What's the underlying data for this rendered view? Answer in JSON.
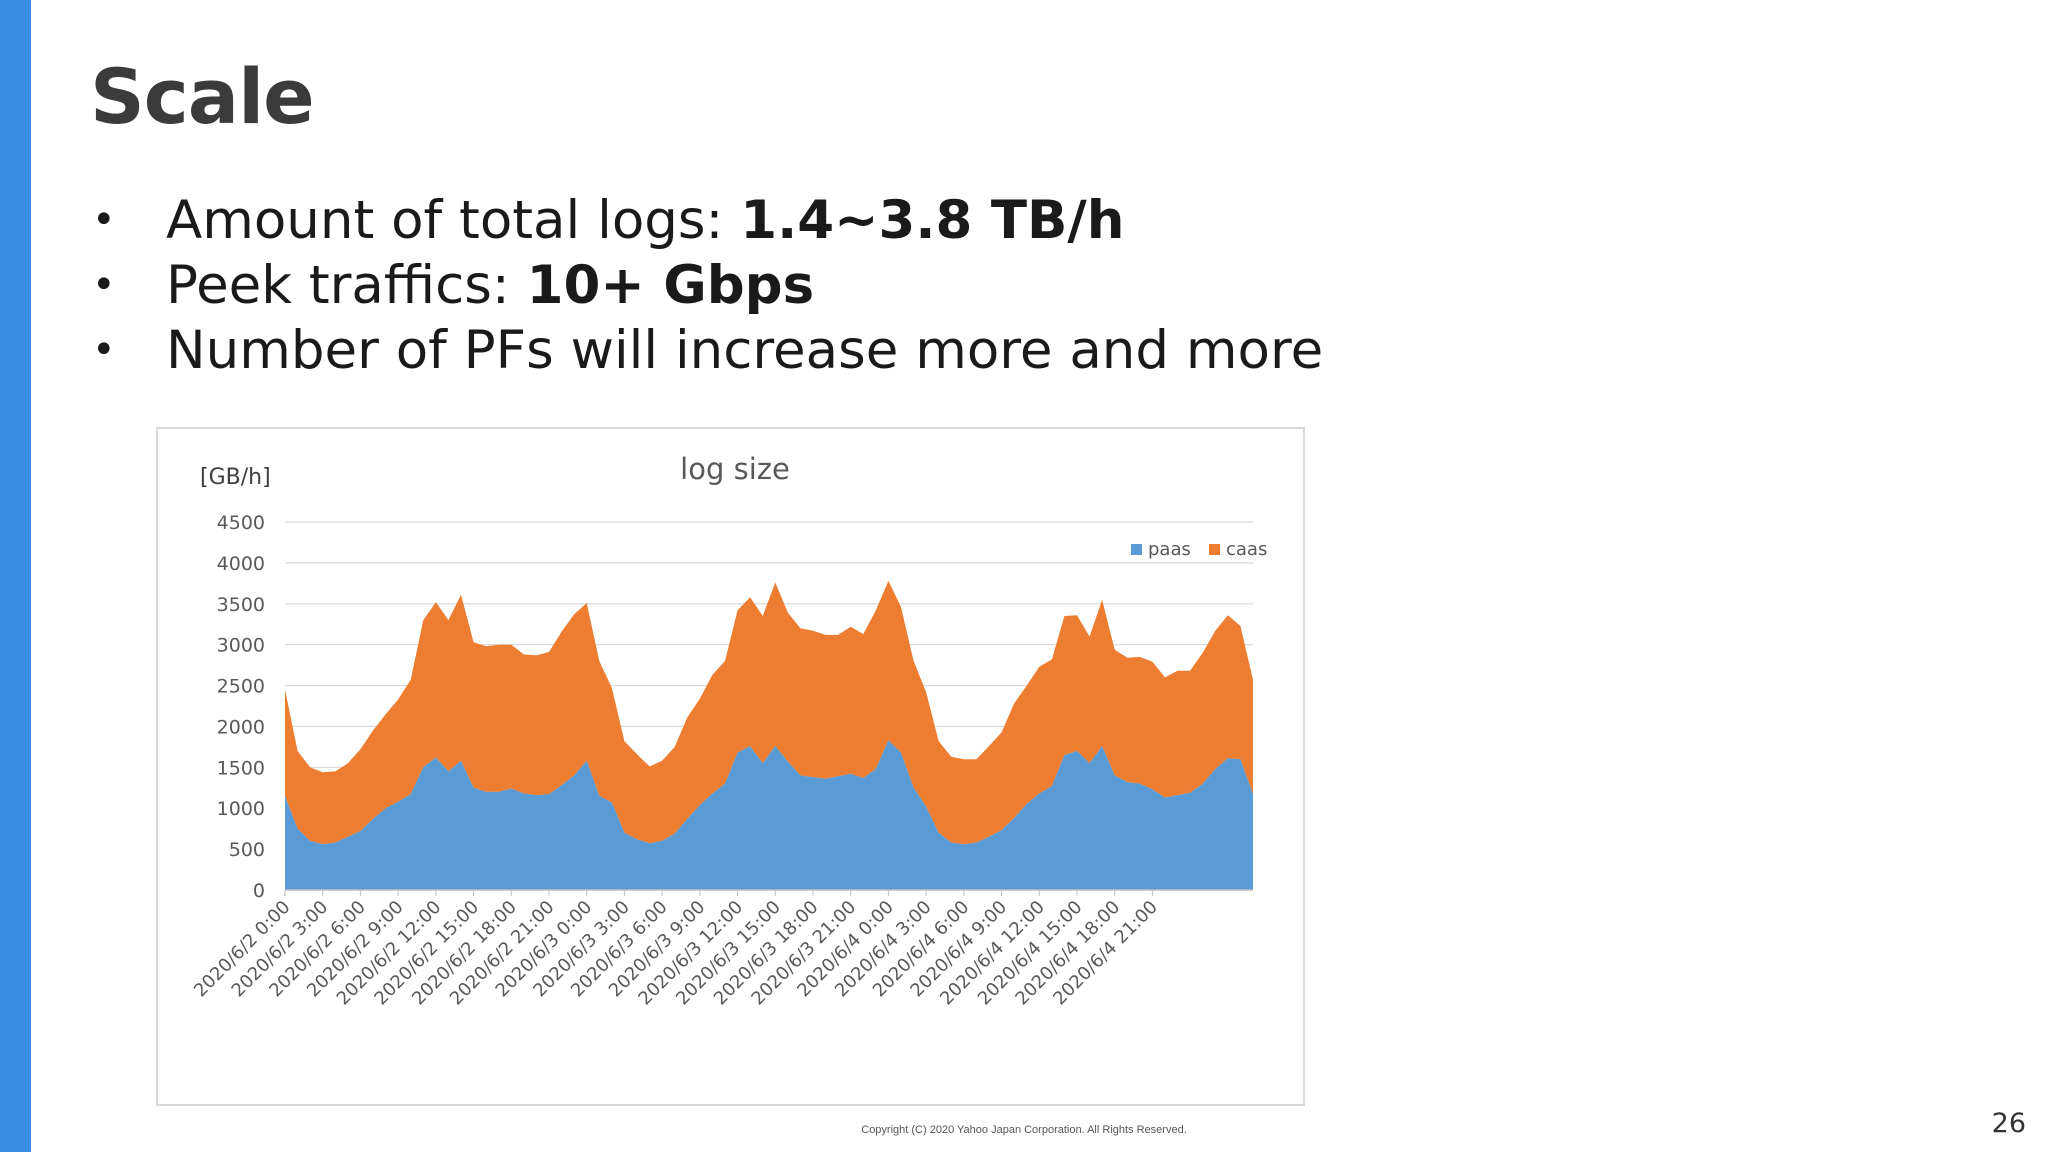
{
  "slide": {
    "title": "Scale",
    "bullet_symbol": "•",
    "bullets": [
      {
        "text": "Amount of total logs: ",
        "bold": "1.4~3.8 TB/h"
      },
      {
        "text": "Peek traffics: ",
        "bold": "10+ Gbps"
      },
      {
        "text": "Number of PFs will increase more and more",
        "bold": ""
      }
    ],
    "copyright": "Copyright (C) 2020 Yahoo Japan Corporation. All Rights Reserved.",
    "page_number": "26"
  },
  "colors": {
    "accent": "#3a8ee6",
    "title": "#3b3b3b",
    "text": "#1a1a1a",
    "paas": "#5b9bd5",
    "caas": "#ed7d31",
    "grid": "#d9d9d9",
    "axis_text": "#595959"
  },
  "chart_data": {
    "type": "area",
    "stacked": true,
    "title": "log size",
    "ylabel": "[GB/h]",
    "xlabel": "",
    "ylim": [
      0,
      4500
    ],
    "yticks": [
      0,
      500,
      1000,
      1500,
      2000,
      2500,
      3000,
      3500,
      4000,
      4500
    ],
    "grid": true,
    "legend_position": "top-right",
    "x_tick_labels": [
      "2020/6/2 0:00",
      "2020/6/2 3:00",
      "2020/6/2 6:00",
      "2020/6/2 9:00",
      "2020/6/2 12:00",
      "2020/6/2 15:00",
      "2020/6/2 18:00",
      "2020/6/2 21:00",
      "2020/6/3 0:00",
      "2020/6/3 3:00",
      "2020/6/3 6:00",
      "2020/6/3 9:00",
      "2020/6/3 12:00",
      "2020/6/3 15:00",
      "2020/6/3 18:00",
      "2020/6/3 21:00",
      "2020/6/4 0:00",
      "2020/6/4 3:00",
      "2020/6/4 6:00",
      "2020/6/4 9:00",
      "2020/6/4 12:00",
      "2020/6/4 15:00",
      "2020/6/4 18:00",
      "2020/6/4 21:00"
    ],
    "series": [
      {
        "name": "paas",
        "values": [
          1150,
          750,
          600,
          560,
          580,
          650,
          720,
          870,
          1000,
          1080,
          1170,
          1500,
          1620,
          1450,
          1580,
          1250,
          1200,
          1200,
          1240,
          1180,
          1160,
          1170,
          1280,
          1400,
          1580,
          1150,
          1070,
          700,
          620,
          570,
          600,
          690,
          870,
          1040,
          1180,
          1300,
          1680,
          1760,
          1550,
          1760,
          1570,
          1400,
          1380,
          1360,
          1390,
          1420,
          1370,
          1480,
          1830,
          1680,
          1250,
          1020,
          700,
          580,
          560,
          580,
          650,
          730,
          880,
          1050,
          1180,
          1270,
          1650,
          1700,
          1550,
          1760,
          1400,
          1320,
          1300,
          1230,
          1130,
          1160,
          1190,
          1300,
          1480,
          1610,
          1600,
          1170
        ]
      },
      {
        "name": "caas",
        "values": [
          1300,
          950,
          900,
          880,
          870,
          900,
          1000,
          1080,
          1150,
          1250,
          1400,
          1800,
          1900,
          1850,
          2030,
          1780,
          1780,
          1800,
          1760,
          1700,
          1710,
          1740,
          1880,
          1970,
          1930,
          1650,
          1400,
          1120,
          1040,
          940,
          980,
          1060,
          1240,
          1300,
          1450,
          1500,
          1740,
          1820,
          1800,
          2000,
          1820,
          1800,
          1790,
          1760,
          1730,
          1800,
          1760,
          1940,
          1950,
          1780,
          1550,
          1400,
          1120,
          1050,
          1040,
          1020,
          1110,
          1200,
          1400,
          1450,
          1550,
          1550,
          1700,
          1660,
          1550,
          1790,
          1540,
          1520,
          1550,
          1560,
          1470,
          1520,
          1490,
          1600,
          1690,
          1750,
          1630,
          1400
        ]
      }
    ]
  }
}
